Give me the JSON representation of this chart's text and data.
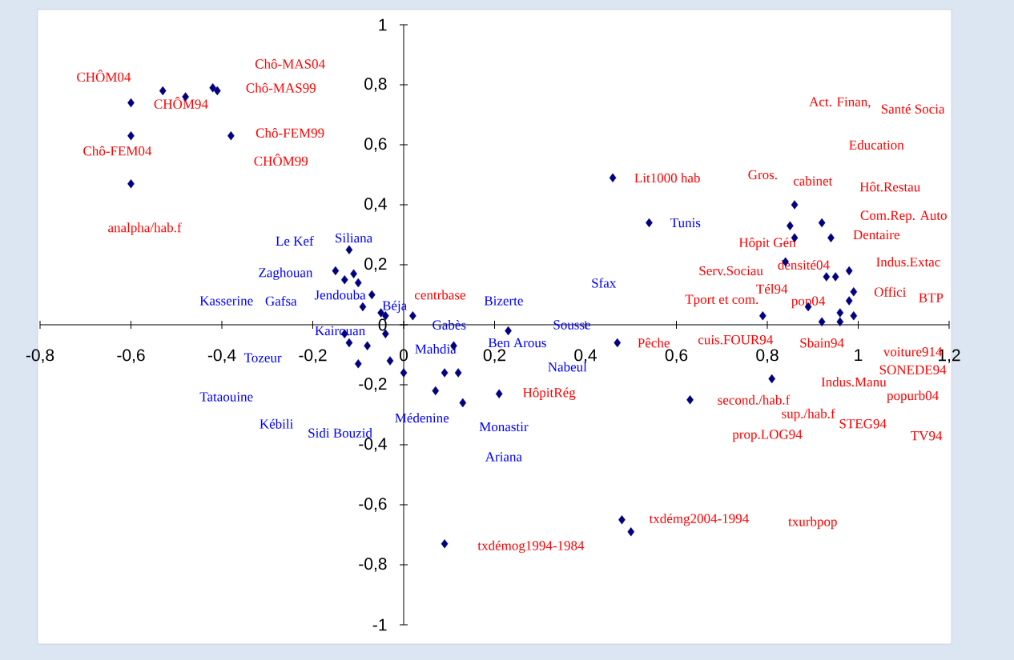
{
  "chart_data": {
    "type": "scatter",
    "marker": "diamond",
    "xlim": [
      -0.8,
      1.2
    ],
    "ylim": [
      -1,
      1
    ],
    "xticks": [
      {
        "value": -0.8,
        "label": "-0,8"
      },
      {
        "value": -0.6,
        "label": "-0,6"
      },
      {
        "value": -0.4,
        "label": "-0,4"
      },
      {
        "value": -0.2,
        "label": "-0,2"
      },
      0,
      {
        "value": 0.2,
        "label": "0,2"
      },
      {
        "value": 0.4,
        "label": "0,4"
      },
      {
        "value": 0.6,
        "label": "0,6"
      },
      {
        "value": 0.8,
        "label": "0,8"
      },
      1,
      {
        "value": 1.2,
        "label": "1,2"
      }
    ],
    "yticks": [
      {
        "value": -1,
        "label": "-1"
      },
      {
        "value": -0.8,
        "label": "-0,8"
      },
      {
        "value": -0.6,
        "label": "-0,6"
      },
      {
        "value": -0.4,
        "label": "-0,4"
      },
      {
        "value": -0.2,
        "label": "-0,2"
      },
      0,
      {
        "value": 0.2,
        "label": "0,2"
      },
      {
        "value": 0.4,
        "label": "0,4"
      },
      {
        "value": 0.6,
        "label": "0,6"
      },
      {
        "value": 0.8,
        "label": "0,8"
      },
      1
    ],
    "series": [
      {
        "color": "#000080",
        "x": [
          -0.6,
          -0.53,
          -0.48,
          -0.42,
          -0.41,
          -0.38,
          -0.6,
          -0.6,
          -0.12,
          -0.15,
          -0.11,
          -0.13,
          -0.1,
          -0.07,
          -0.09,
          -0.05,
          -0.04,
          0.02,
          -0.13,
          -0.04,
          -0.12,
          -0.08,
          -0.1,
          -0.03,
          0.0,
          0.23,
          0.11,
          0.09,
          0.12,
          0.07,
          0.13,
          0.21,
          0.46,
          0.54,
          0.47,
          0.63,
          0.48,
          0.5,
          0.09,
          0.86,
          0.85,
          0.86,
          0.92,
          0.94,
          0.84,
          0.93,
          0.95,
          0.98,
          0.99,
          0.98,
          0.89,
          0.79,
          0.92,
          0.96,
          0.96,
          0.99,
          0.81
        ],
        "values": [
          0.74,
          0.78,
          0.76,
          0.79,
          0.78,
          0.63,
          0.63,
          0.47,
          0.25,
          0.18,
          0.17,
          0.15,
          0.14,
          0.1,
          0.06,
          0.04,
          0.03,
          0.03,
          -0.03,
          -0.03,
          -0.06,
          -0.07,
          -0.13,
          -0.12,
          -0.16,
          -0.02,
          -0.07,
          -0.16,
          -0.16,
          -0.22,
          -0.26,
          -0.23,
          0.49,
          0.34,
          -0.06,
          -0.25,
          -0.65,
          -0.69,
          -0.73,
          0.4,
          0.33,
          0.29,
          0.34,
          0.29,
          0.21,
          0.16,
          0.16,
          0.18,
          0.11,
          0.08,
          0.06,
          0.03,
          0.01,
          0.01,
          0.04,
          0.03,
          -0.18
        ]
      }
    ],
    "annotations": [
      "CHÔM04",
      "Chô-MAS04",
      "CHÔM94",
      "Chô-MAS99",
      "Chô-FEM99",
      "CHÔM99",
      "Chô-FEM04",
      "analpha/hab.f",
      "centrbase",
      "Lit1000 hab",
      "Act. Finan,",
      "Santé Socia",
      "Education",
      "Gros.",
      "cabinet",
      "Hôt.Restau",
      "Com.Rep. Auto",
      "Hôpit Gén",
      "Dentaire",
      "Serv.Sociau",
      "densité04",
      "Indus.Extac",
      "Tél94",
      "Offici",
      "Tport et com.",
      "pop04",
      "BTP",
      "Pêche",
      "cuis.FOUR94",
      "Sbain94",
      "voiture914",
      "SONEDE94",
      "Indus.Manu",
      "popurb04",
      "second./hab.f",
      "sup./hab.f",
      "STEG94",
      "prop.LOG94",
      "TV94",
      "HôpitRég",
      "txdémg2004-1994",
      "txurbpop",
      "txdémog1994-1984",
      "Le Kef",
      "Siliana",
      "Zaghouan",
      "Kasserine",
      "Gafsa",
      "Jendouba",
      "Béja",
      "Kairouan",
      "Tozeur",
      "Tataouine",
      "Kébili",
      "Sidi Bouzid",
      "Gabès",
      "Mahdia",
      "Médenine",
      "Bizerte",
      "Ben Arous",
      "Sousse",
      "Nabeul",
      "Monastir",
      "Ariana",
      "Sfax",
      "Tunis"
    ]
  }
}
